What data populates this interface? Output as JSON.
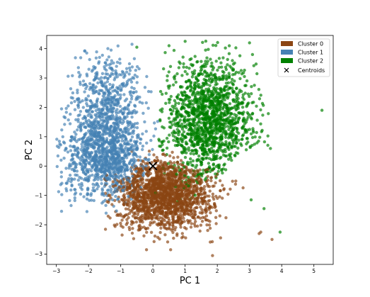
{
  "chart_data": {
    "type": "scatter",
    "title": "",
    "xlabel": "PC 1",
    "ylabel": "PC 2",
    "xlim": [
      -3.3,
      5.6
    ],
    "ylim": [
      -3.35,
      4.45
    ],
    "xticks": [
      -3,
      -2,
      -1,
      0,
      1,
      2,
      3,
      4,
      5
    ],
    "yticks": [
      -3,
      -2,
      -1,
      0,
      1,
      2,
      3,
      4
    ],
    "grid": false,
    "legend_position": "top-right",
    "series": [
      {
        "name": "Cluster 0",
        "color": "#8b4513",
        "point_count_approx": 1700,
        "approx_center": [
          0.4,
          -0.9
        ],
        "outliers": [
          [
            -0.2,
            -2.85
          ],
          [
            0.55,
            -2.85
          ],
          [
            1.85,
            -3.05
          ],
          [
            3.35,
            -2.25
          ],
          [
            3.7,
            -2.5
          ],
          [
            3.3,
            -2.3
          ]
        ]
      },
      {
        "name": "Cluster 1",
        "color": "#4682b4",
        "point_count_approx": 1700,
        "approx_center": [
          -1.6,
          0.5
        ],
        "outliers": [
          [
            -1.3,
            3.95
          ],
          [
            -1.4,
            4.0
          ],
          [
            -0.65,
            4.15
          ],
          [
            -2.05,
            -1.55
          ],
          [
            -2.8,
            1.0
          ]
        ]
      },
      {
        "name": "Cluster 2",
        "color": "#008000",
        "point_count_approx": 1500,
        "approx_center": [
          1.8,
          1.6
        ],
        "outliers": [
          [
            5.25,
            1.9
          ],
          [
            3.95,
            -2.25
          ],
          [
            3.0,
            4.2
          ],
          [
            1.0,
            4.25
          ],
          [
            0.5,
            4.1
          ],
          [
            -0.5,
            4.05
          ],
          [
            3.65,
            0.6
          ],
          [
            3.05,
            -1.15
          ],
          [
            3.45,
            -1.45
          ]
        ]
      }
    ],
    "centroids": {
      "name": "Centroids",
      "marker": "x",
      "color": "#000000",
      "points": [
        [
          0.0,
          0.0
        ]
      ]
    }
  },
  "legend": {
    "items": [
      {
        "label": "Cluster 0",
        "color": "#8b4513",
        "kind": "patch"
      },
      {
        "label": "Cluster 1",
        "color": "#4682b4",
        "kind": "patch"
      },
      {
        "label": "Cluster 2",
        "color": "#008000",
        "kind": "patch"
      },
      {
        "label": "Centroids",
        "color": "#000000",
        "kind": "x-marker"
      }
    ]
  }
}
